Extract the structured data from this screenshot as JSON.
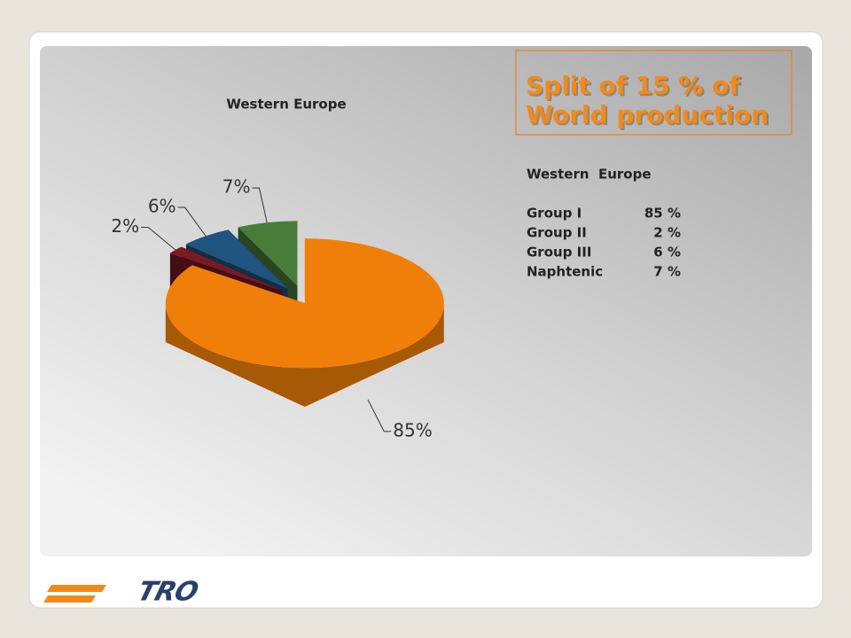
{
  "chart_data": {
    "type": "pie",
    "title": "Western Europe",
    "values": [
      85,
      2,
      6,
      7
    ],
    "value_labels": [
      "85%",
      "2%",
      "6%",
      "7%"
    ],
    "colors": [
      "#f07f09",
      "#7b1a24",
      "#1f5480",
      "#4a7d3a"
    ]
  },
  "heading": {
    "lines": [
      "Split of 15 % of",
      "World production"
    ]
  },
  "summary": {
    "title": "Western  Europe",
    "rows": [
      {
        "name": "Group I",
        "value": "85 %"
      },
      {
        "name": "Group II",
        "value": "2 %"
      },
      {
        "name": "Group III",
        "value": "6 %"
      },
      {
        "name": "Naphtenic",
        "value": "7 %"
      }
    ]
  },
  "logo": "TRO"
}
